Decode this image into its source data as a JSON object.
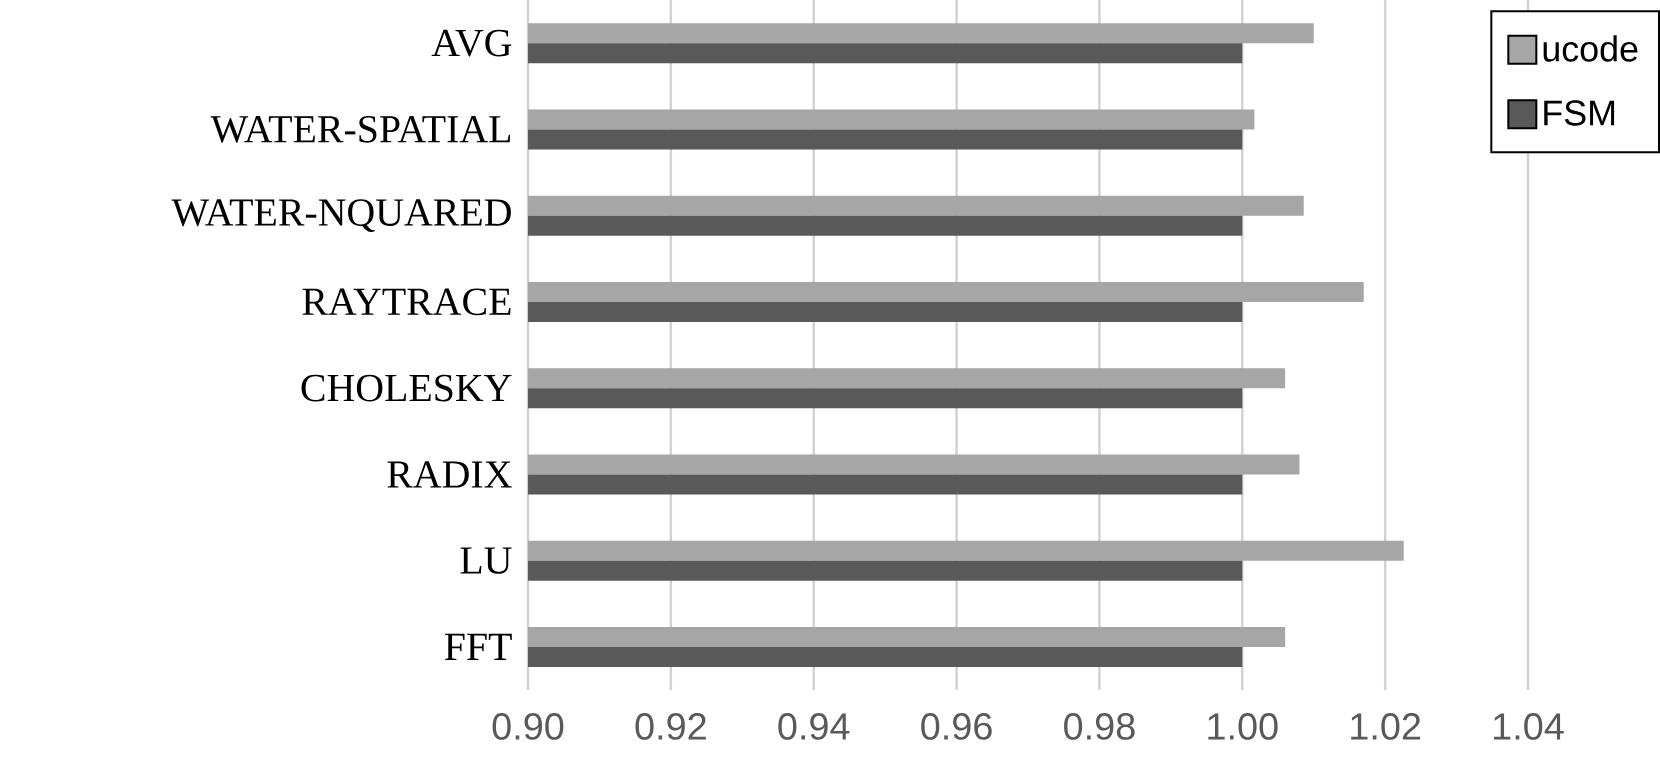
{
  "chart_data": {
    "type": "bar",
    "orientation": "horizontal",
    "categories": [
      "AVG",
      "WATER-SPATIAL",
      "WATER-NQUARED",
      "RAYTRACE",
      "CHOLESKY",
      "RADIX",
      "LU",
      "FFT"
    ],
    "series": [
      {
        "name": "ucode",
        "color": "#a6a6a6",
        "values": [
          1.01,
          1.0017,
          1.0086,
          1.017,
          1.006,
          1.008,
          1.0226,
          1.006
        ]
      },
      {
        "name": "FSM",
        "color": "#595959",
        "values": [
          1.0,
          1.0,
          1.0,
          1.0,
          1.0,
          1.0,
          1.0,
          1.0
        ]
      }
    ],
    "xlim": [
      0.9,
      1.04
    ],
    "xticks": [
      {
        "value": 0.9,
        "label": "0.90"
      },
      {
        "value": 0.92,
        "label": "0.92"
      },
      {
        "value": 0.94,
        "label": "0.94"
      },
      {
        "value": 0.96,
        "label": "0.96"
      },
      {
        "value": 0.98,
        "label": "0.98"
      },
      {
        "value": 1.0,
        "label": "1.00"
      },
      {
        "value": 1.02,
        "label": "1.02"
      },
      {
        "value": 1.04,
        "label": "1.04"
      }
    ],
    "grid": "x",
    "legend": "top right"
  }
}
